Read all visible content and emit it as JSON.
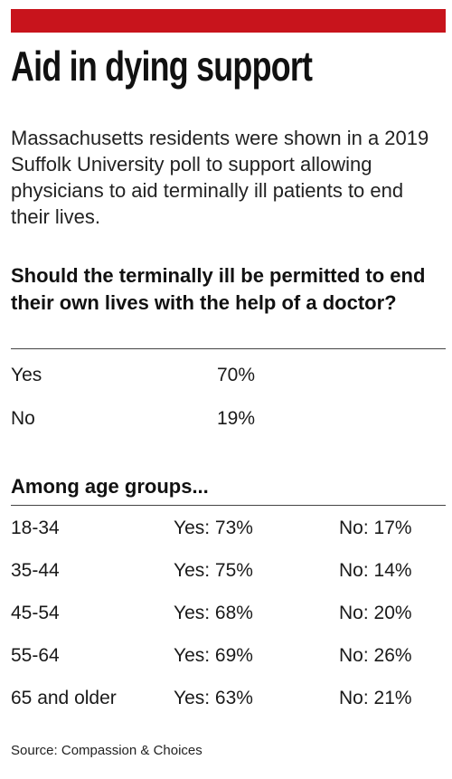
{
  "title": "Aid in dying support",
  "dek": "Massachusetts residents were shown in a 2019 Suffolk University poll to support allowing physicians to aid terminally ill patients to end their lives.",
  "question": "Should the terminally ill be permitted to end their own lives with the help of a doctor?",
  "section_title": "Among age groups...",
  "source": "Source: Compassion & Choices",
  "colors": {
    "accent": "#c8141c",
    "rule": "#444444"
  },
  "chart_data": [
    {
      "type": "table",
      "title": "Should the terminally ill be permitted to end their own lives with the help of a doctor?",
      "rows": [
        {
          "label": "Yes",
          "value": "70%"
        },
        {
          "label": "No",
          "value": "19%"
        }
      ]
    },
    {
      "type": "table",
      "title": "Among age groups...",
      "rows": [
        {
          "group": "18-34",
          "yes": "Yes: 73%",
          "no": "No: 17%"
        },
        {
          "group": "35-44",
          "yes": "Yes: 75%",
          "no": "No: 14%"
        },
        {
          "group": "45-54",
          "yes": "Yes: 68%",
          "no": "No: 20%"
        },
        {
          "group": "55-64",
          "yes": "Yes: 69%",
          "no": "No: 26%"
        },
        {
          "group": "65 and older",
          "yes": "Yes: 63%",
          "no": "No: 21%"
        }
      ]
    }
  ]
}
